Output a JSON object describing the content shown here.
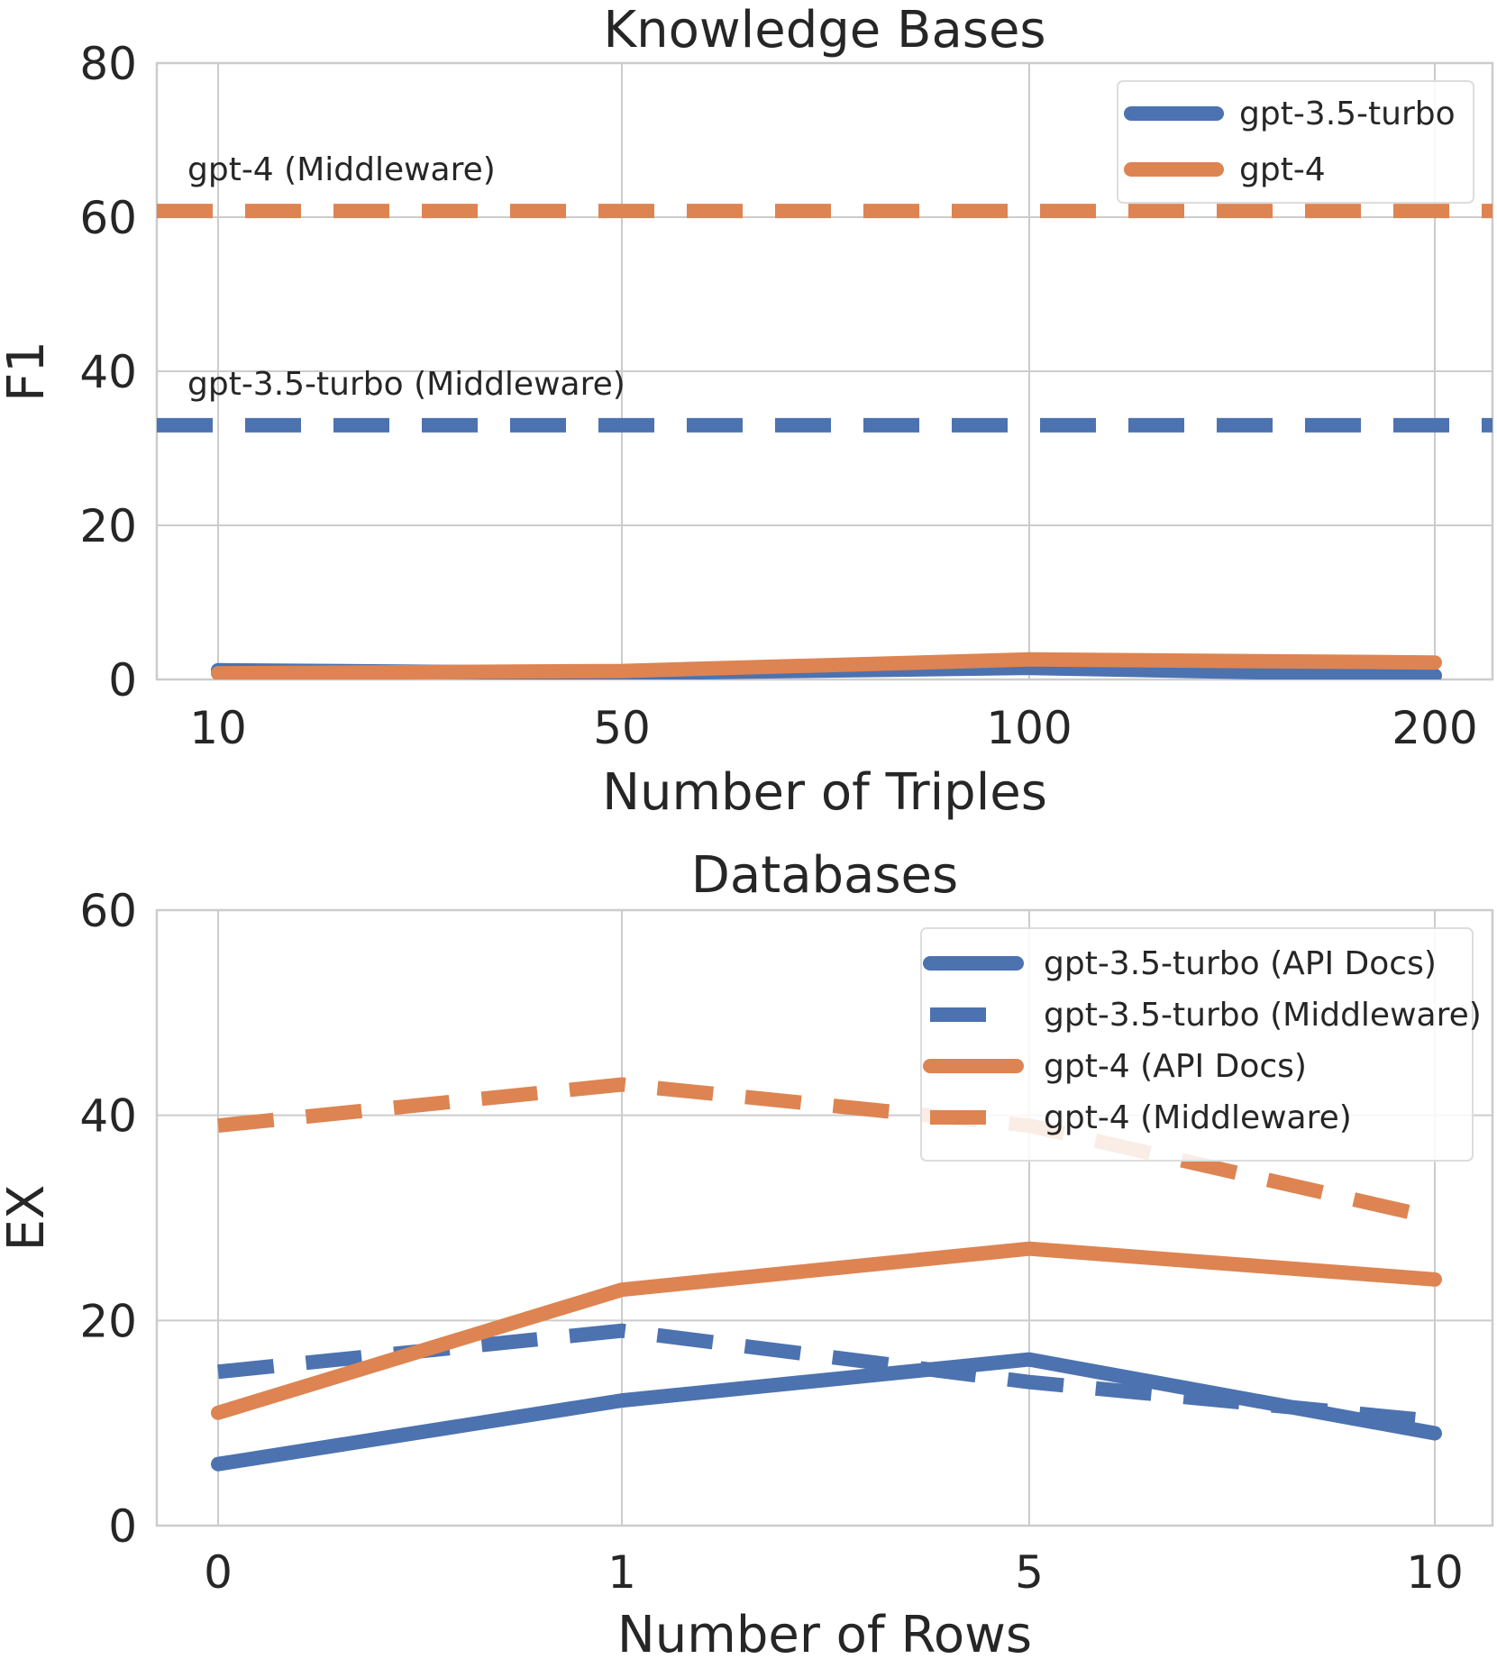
{
  "colors": {
    "blue": "#4c72b0",
    "orange": "#dd8452",
    "grid": "#cccccc",
    "text": "#262626"
  },
  "chart_data": [
    {
      "type": "line",
      "title": "Knowledge Bases",
      "xlabel": "Number of Triples",
      "ylabel": "F1",
      "categories": [
        "10",
        "50",
        "100",
        "200"
      ],
      "ylim": [
        0,
        80
      ],
      "yticks": [
        0,
        20,
        40,
        60,
        80
      ],
      "grid": true,
      "legend_position": "top-right",
      "series": [
        {
          "name": "gpt-3.5-turbo",
          "style": "solid",
          "color": "#4c72b0",
          "values": [
            1.2,
            0.8,
            1.5,
            0.5
          ]
        },
        {
          "name": "gpt-4",
          "style": "solid",
          "color": "#dd8452",
          "values": [
            0.8,
            1.1,
            2.6,
            2.2
          ]
        }
      ],
      "reference_lines": [
        {
          "label": "gpt-4 (Middleware)",
          "value": 60.8,
          "style": "dashed",
          "color": "#dd8452"
        },
        {
          "label": "gpt-3.5-turbo (Middleware)",
          "value": 33.0,
          "style": "dashed",
          "color": "#4c72b0"
        }
      ]
    },
    {
      "type": "line",
      "title": "Databases",
      "xlabel": "Number of Rows",
      "ylabel": "EX",
      "categories": [
        "0",
        "1",
        "5",
        "10"
      ],
      "ylim": [
        0,
        60
      ],
      "yticks": [
        0,
        20,
        40,
        60
      ],
      "grid": true,
      "legend_position": "top-right",
      "series": [
        {
          "name": "gpt-3.5-turbo (API Docs)",
          "style": "solid",
          "color": "#4c72b0",
          "values": [
            6.0,
            12.2,
            16.2,
            9.0
          ]
        },
        {
          "name": "gpt-3.5-turbo (Middleware)",
          "style": "dashed",
          "color": "#4c72b0",
          "values": [
            15.0,
            19.0,
            14.0,
            10.2
          ]
        },
        {
          "name": "gpt-4 (API Docs)",
          "style": "solid",
          "color": "#dd8452",
          "values": [
            11.0,
            23.0,
            27.0,
            24.0
          ]
        },
        {
          "name": "gpt-4 (Middleware)",
          "style": "dashed",
          "color": "#dd8452",
          "values": [
            39.0,
            43.0,
            39.0,
            30.0
          ]
        }
      ]
    }
  ]
}
